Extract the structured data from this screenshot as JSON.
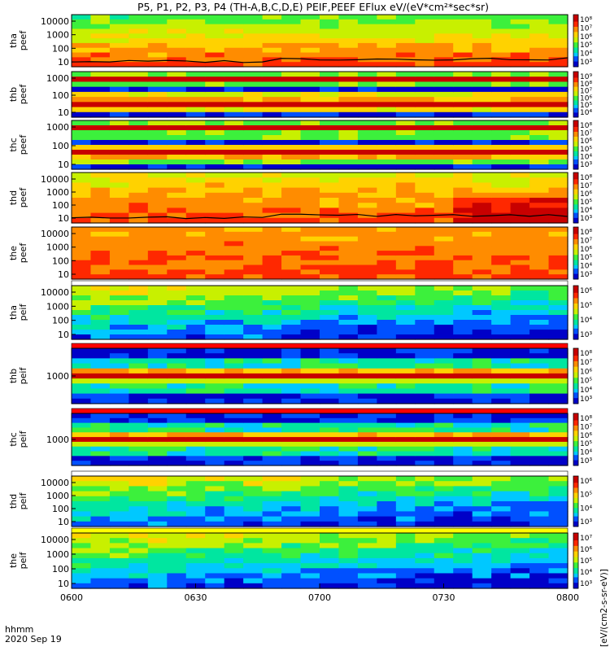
{
  "title": "P5, P1, P2, P3, P4 (TH-A,B,C,D,E) PEIF,PEEF EFlux eV/(eV*cm²*sec*sr)",
  "footer": {
    "time_label": "hhmm",
    "date_label": "2020 Sep 19"
  },
  "colorbar_label": "[eV/(cm2-s-sr-eV)]",
  "colors": {
    "scale": [
      "#0000c8",
      "#0050ff",
      "#00c8ff",
      "#00e6a0",
      "#3cf03c",
      "#c8f000",
      "#ffd200",
      "#ff8c00",
      "#ff2800",
      "#c80000"
    ],
    "flag_white": "#ffffff",
    "flag_yellow": "#ffff00",
    "flag_red": "#ff0000"
  },
  "chart_data": {
    "type": "heatmap",
    "x_ticks": [
      "0600",
      "0630",
      "0700",
      "0730",
      "0800"
    ],
    "x_range": [
      "0600",
      "0800"
    ],
    "panels": [
      {
        "id": "tha-peef",
        "label": [
          "tha",
          "peef"
        ],
        "y_ticks": [
          "10000",
          "1000",
          "100",
          "10"
        ],
        "cbar_ticks": [
          "10⁸",
          "10⁷",
          "10⁶",
          "10⁵",
          "10⁴",
          "10³"
        ],
        "pattern": "espec_band",
        "flag": null,
        "trace": true
      },
      {
        "id": "thb-peef",
        "label": [
          "thb",
          "peef"
        ],
        "y_ticks": [
          "1000",
          "100",
          "10"
        ],
        "cbar_ticks": [
          "10⁹",
          "10⁸",
          "10⁷",
          "10⁶",
          "10⁵",
          "10⁴"
        ],
        "pattern": "red_band",
        "flag": null,
        "trace": false
      },
      {
        "id": "thc-peef",
        "label": [
          "thc",
          "peef"
        ],
        "y_ticks": [
          "1000",
          "100",
          "10"
        ],
        "cbar_ticks": [
          "10⁸",
          "10⁷",
          "10⁶",
          "10⁵",
          "10⁴",
          "10³"
        ],
        "pattern": "red_band",
        "flag": null,
        "trace": false
      },
      {
        "id": "thd-peef",
        "label": [
          "thd",
          "peef"
        ],
        "y_ticks": [
          "10000",
          "1000",
          "100",
          "10"
        ],
        "cbar_ticks": [
          "10⁸",
          "10⁷",
          "10⁶",
          "10⁵",
          "10⁴",
          "10³"
        ],
        "pattern": "espec_warm",
        "flag": null,
        "trace": true
      },
      {
        "id": "the-peef",
        "label": [
          "the",
          "peef"
        ],
        "y_ticks": [
          "10000",
          "1000",
          "100",
          "10"
        ],
        "cbar_ticks": [
          "10⁸",
          "10⁷",
          "10⁶",
          "10⁵",
          "10⁴",
          "10³"
        ],
        "pattern": "espec_hot",
        "flag": null,
        "trace": false
      },
      {
        "id": "tha-peif",
        "label": [
          "tha",
          "peif"
        ],
        "y_ticks": [
          "10000",
          "1000",
          "100",
          "10"
        ],
        "cbar_ticks": [
          "10⁶",
          "10⁵",
          "10⁴",
          "10³"
        ],
        "pattern": "ion_low",
        "flag": "white",
        "trace": false
      },
      {
        "id": "thb-peif",
        "label": [
          "thb",
          "peif"
        ],
        "y_ticks": [
          "1000"
        ],
        "cbar_ticks": [
          "10⁸",
          "10⁷",
          "10⁶",
          "10⁵",
          "10⁴",
          "10³"
        ],
        "pattern": "ion_band",
        "flag": "red",
        "trace": false
      },
      {
        "id": "thc-peif",
        "label": [
          "thc",
          "peif"
        ],
        "y_ticks": [
          "1000"
        ],
        "cbar_ticks": [
          "10⁸",
          "10⁷",
          "10⁶",
          "10⁵",
          "10⁴",
          "10³"
        ],
        "pattern": "ion_band",
        "flag": "red",
        "trace": false
      },
      {
        "id": "thd-peif",
        "label": [
          "thd",
          "peif"
        ],
        "y_ticks": [
          "10000",
          "1000",
          "100",
          "10"
        ],
        "cbar_ticks": [
          "10⁶",
          "10⁵",
          "10⁴",
          "10³"
        ],
        "pattern": "ion_low",
        "flag": "white",
        "trace": false
      },
      {
        "id": "the-peif",
        "label": [
          "the",
          "peif"
        ],
        "y_ticks": [
          "10000",
          "1000",
          "100",
          "10"
        ],
        "cbar_ticks": [
          "10⁷",
          "10⁶",
          "10⁵",
          "10⁴",
          "10³"
        ],
        "pattern": "ion_low",
        "flag": "yellow",
        "trace": false
      }
    ]
  }
}
